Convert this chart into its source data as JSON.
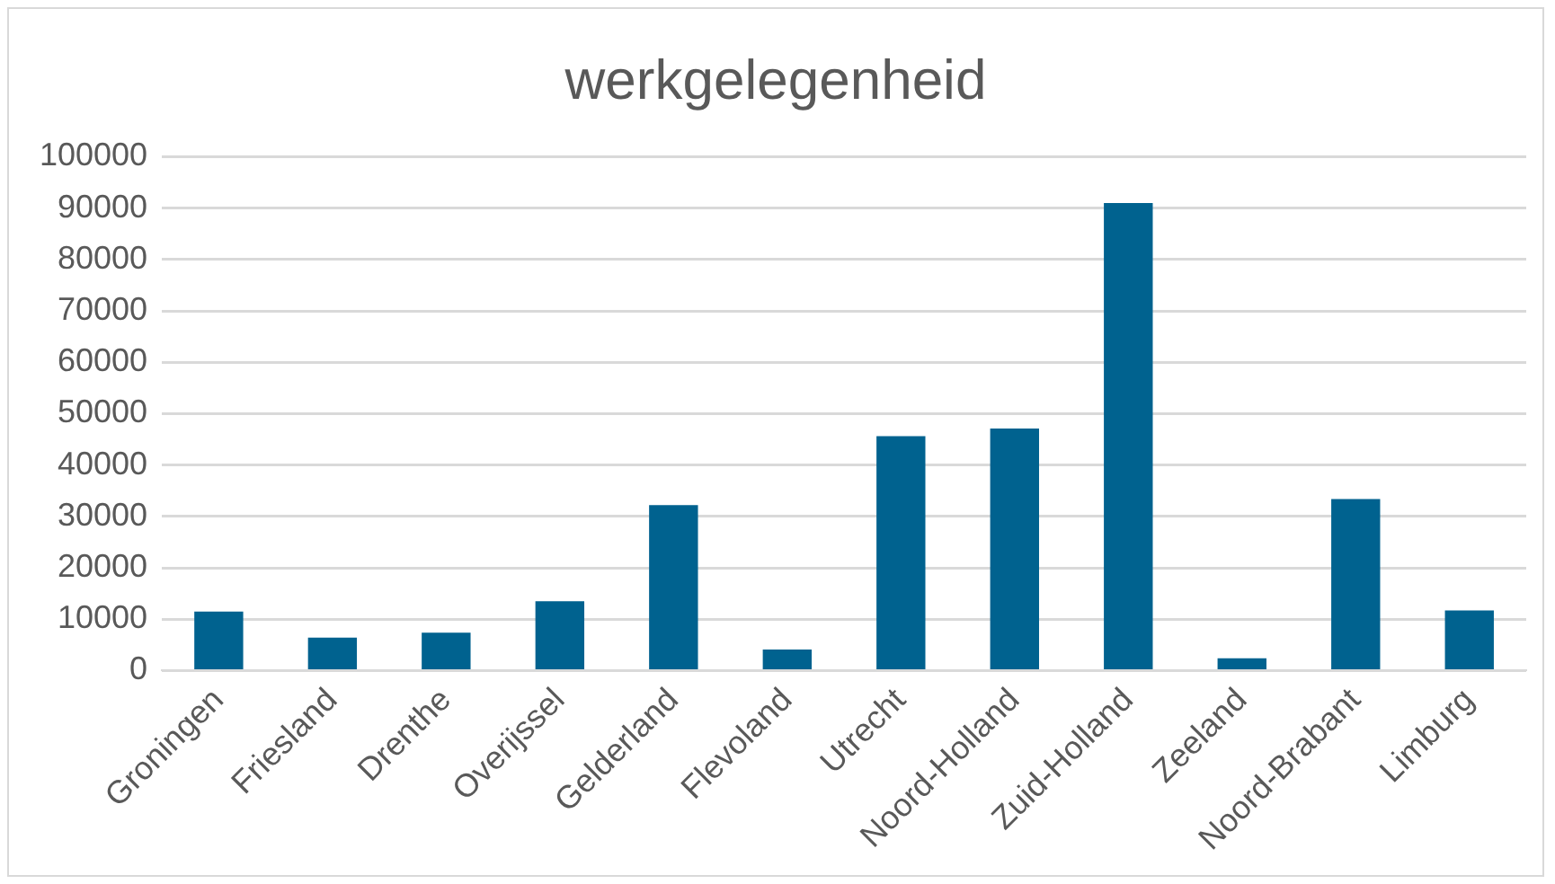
{
  "chart_data": {
    "type": "bar",
    "title": "werkgelegenheid",
    "categories": [
      "Groningen",
      "Friesland",
      "Drenthe",
      "Overijssel",
      "Gelderland",
      "Flevoland",
      "Utrecht",
      "Noord-Holland",
      "Zuid-Holland",
      "Zeeland",
      "Noord-Brabant",
      "Limburg"
    ],
    "values": [
      11500,
      6400,
      7400,
      13500,
      32200,
      4100,
      45600,
      47100,
      91000,
      2400,
      33400,
      11700
    ],
    "color": "#00628f",
    "ylim": [
      0,
      100000
    ],
    "yticks": [
      0,
      10000,
      20000,
      30000,
      40000,
      50000,
      60000,
      70000,
      80000,
      90000,
      100000
    ],
    "grid": "y",
    "legend": false
  }
}
